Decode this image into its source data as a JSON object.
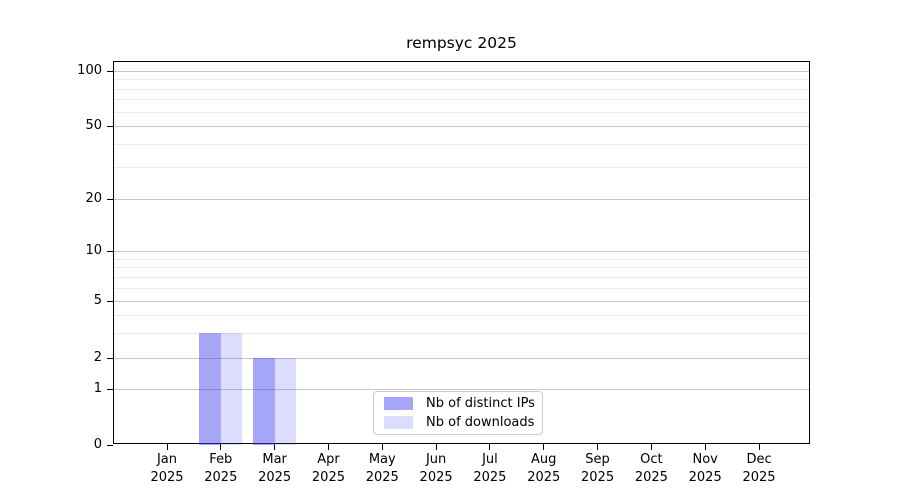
{
  "chart_data": {
    "type": "bar",
    "title": "rempsyc 2025",
    "categories": [
      {
        "month": "Jan",
        "year": "2025"
      },
      {
        "month": "Feb",
        "year": "2025"
      },
      {
        "month": "Mar",
        "year": "2025"
      },
      {
        "month": "Apr",
        "year": "2025"
      },
      {
        "month": "May",
        "year": "2025"
      },
      {
        "month": "Jun",
        "year": "2025"
      },
      {
        "month": "Jul",
        "year": "2025"
      },
      {
        "month": "Aug",
        "year": "2025"
      },
      {
        "month": "Sep",
        "year": "2025"
      },
      {
        "month": "Oct",
        "year": "2025"
      },
      {
        "month": "Nov",
        "year": "2025"
      },
      {
        "month": "Dec",
        "year": "2025"
      }
    ],
    "series": [
      {
        "name": "Nb of distinct IPs",
        "color": "rgba(70,70,240,0.48)",
        "values": [
          0,
          3,
          2,
          0,
          0,
          0,
          0,
          0,
          0,
          0,
          0,
          0
        ]
      },
      {
        "name": "Nb of downloads",
        "color": "rgba(70,70,240,0.19)",
        "values": [
          0,
          3,
          2,
          0,
          0,
          0,
          0,
          0,
          0,
          0,
          0,
          0
        ]
      }
    ],
    "y_axis": {
      "scale": "symlog-like",
      "major_ticks": [
        0,
        1,
        2,
        5,
        10,
        20,
        50,
        100
      ],
      "minor_gridlines": [
        3,
        4,
        6,
        7,
        8,
        9,
        30,
        40,
        60,
        70,
        80,
        90
      ],
      "ylim": [
        0,
        110
      ]
    },
    "xlabel": "",
    "ylabel": "",
    "grid": true,
    "legend": {
      "position": "lower center"
    }
  }
}
